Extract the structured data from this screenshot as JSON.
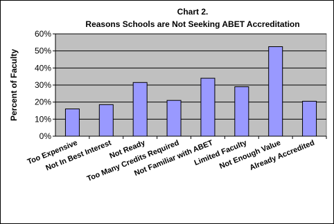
{
  "chart_data": {
    "type": "bar",
    "title": "Chart 2.",
    "subtitle": "Reasons Schools are Not Seeking ABET Accreditation",
    "xlabel": "",
    "ylabel": "Percent of Faculty",
    "categories": [
      "Too Expensive",
      "Not In Best Interest",
      "Not Ready",
      "Too Many Credits Required",
      "Not Familiar with ABET",
      "Limited Faculty",
      "Not Enough Value",
      "Already Accredited"
    ],
    "values": [
      16,
      18.5,
      31.5,
      21,
      34,
      29,
      52.5,
      20.5
    ],
    "ylim": [
      0,
      60
    ],
    "yticks": [
      "0%",
      "10%",
      "20%",
      "30%",
      "40%",
      "50%",
      "60%"
    ],
    "grid": true,
    "colors": {
      "plot_background": "#c0c0c0",
      "bar_fill": "#9999ff",
      "bar_stroke": "#000000",
      "gridline": "#000000"
    }
  }
}
